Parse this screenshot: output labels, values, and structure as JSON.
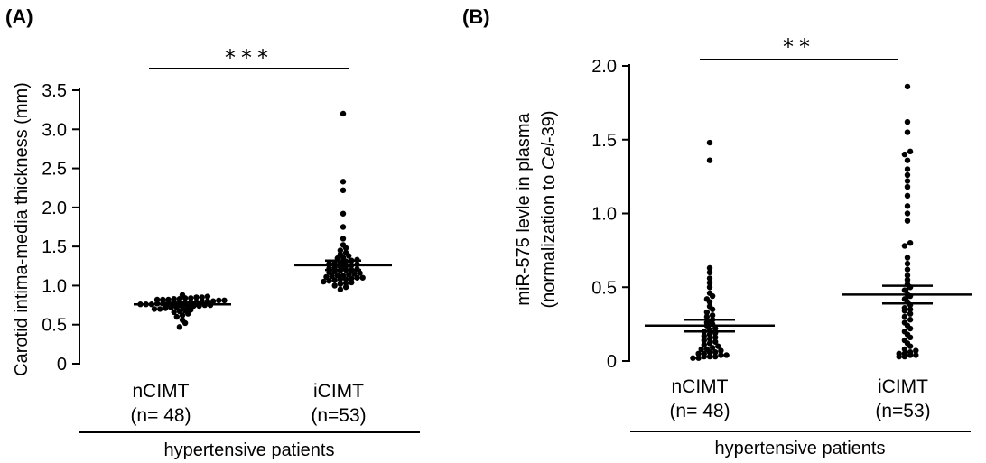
{
  "chart_data": [
    {
      "type": "scatter",
      "panel_label": "(A)",
      "ylabel": "Carotid intima-media thickness (mm)",
      "ylim": [
        0,
        3.5
      ],
      "yticks": [
        0,
        0.5,
        1.0,
        1.5,
        2.0,
        2.5,
        3.0,
        3.5
      ],
      "ytick_labels": [
        "0",
        "0.5",
        "1.0",
        "1.5",
        "2.0",
        "2.5",
        "3.0",
        "3.5"
      ],
      "groups": [
        {
          "label": "nCIMT",
          "n_label": "(n= 48)",
          "mean": 0.76,
          "sem_low": 0.74,
          "sem_high": 0.78,
          "values": [
            0.47,
            0.52,
            0.56,
            0.6,
            0.62,
            0.64,
            0.66,
            0.67,
            0.68,
            0.69,
            0.7,
            0.7,
            0.71,
            0.72,
            0.72,
            0.73,
            0.73,
            0.74,
            0.74,
            0.75,
            0.75,
            0.76,
            0.76,
            0.76,
            0.77,
            0.77,
            0.77,
            0.78,
            0.78,
            0.78,
            0.79,
            0.79,
            0.8,
            0.8,
            0.8,
            0.81,
            0.81,
            0.82,
            0.82,
            0.82,
            0.83,
            0.83,
            0.84,
            0.84,
            0.85,
            0.85,
            0.86,
            0.88
          ]
        },
        {
          "label": "iCIMT",
          "n_label": "(n=53)",
          "mean": 1.26,
          "sem_low": 1.2,
          "sem_high": 1.32,
          "values": [
            0.95,
            0.98,
            1.0,
            1.02,
            1.03,
            1.04,
            1.05,
            1.06,
            1.07,
            1.08,
            1.08,
            1.09,
            1.1,
            1.1,
            1.11,
            1.12,
            1.13,
            1.13,
            1.14,
            1.15,
            1.16,
            1.17,
            1.18,
            1.19,
            1.2,
            1.2,
            1.21,
            1.22,
            1.23,
            1.24,
            1.25,
            1.26,
            1.27,
            1.28,
            1.29,
            1.3,
            1.31,
            1.32,
            1.33,
            1.35,
            1.36,
            1.38,
            1.4,
            1.42,
            1.45,
            1.48,
            1.52,
            1.6,
            1.75,
            1.92,
            2.22,
            2.33,
            3.2
          ]
        }
      ],
      "significance": "***",
      "xgroup_label": "hypertensive patients"
    },
    {
      "type": "scatter",
      "panel_label": "(B)",
      "ylabel_line1": "miR-575 levle in plasma",
      "ylabel_line2_prefix": "(normalization to ",
      "ylabel_line2_italic": "Cel",
      "ylabel_line2_suffix": "-39)",
      "ylim": [
        0,
        2.0
      ],
      "yticks": [
        0,
        0.5,
        1.0,
        1.5,
        2.0
      ],
      "ytick_labels": [
        "0",
        "0.5",
        "1.0",
        "1.5",
        "2.0"
      ],
      "groups": [
        {
          "label": "nCIMT",
          "n_label": "(n= 48)",
          "mean": 0.24,
          "sem_low": 0.2,
          "sem_high": 0.28,
          "values": [
            0.02,
            0.02,
            0.03,
            0.03,
            0.03,
            0.04,
            0.04,
            0.05,
            0.05,
            0.06,
            0.06,
            0.07,
            0.08,
            0.08,
            0.09,
            0.1,
            0.11,
            0.12,
            0.13,
            0.14,
            0.15,
            0.16,
            0.17,
            0.18,
            0.19,
            0.2,
            0.21,
            0.22,
            0.24,
            0.25,
            0.26,
            0.28,
            0.3,
            0.31,
            0.33,
            0.35,
            0.37,
            0.4,
            0.42,
            0.44,
            0.46,
            0.5,
            0.53,
            0.56,
            0.6,
            0.63,
            1.36,
            1.48
          ]
        },
        {
          "label": "iCIMT",
          "n_label": "(n=53)",
          "mean": 0.45,
          "sem_low": 0.39,
          "sem_high": 0.51,
          "values": [
            0.03,
            0.03,
            0.04,
            0.04,
            0.05,
            0.05,
            0.06,
            0.07,
            0.08,
            0.1,
            0.12,
            0.14,
            0.16,
            0.18,
            0.2,
            0.22,
            0.24,
            0.26,
            0.28,
            0.3,
            0.32,
            0.34,
            0.36,
            0.38,
            0.4,
            0.42,
            0.45,
            0.48,
            0.5,
            0.52,
            0.55,
            0.58,
            0.62,
            0.66,
            0.7,
            0.78,
            0.8,
            0.95,
            1.0,
            1.05,
            1.12,
            1.18,
            1.22,
            1.26,
            1.3,
            1.36,
            1.4,
            1.42,
            1.55,
            1.62,
            1.86,
            0.35,
            0.44
          ]
        }
      ],
      "significance": "**",
      "xgroup_label": "hypertensive patients"
    }
  ]
}
